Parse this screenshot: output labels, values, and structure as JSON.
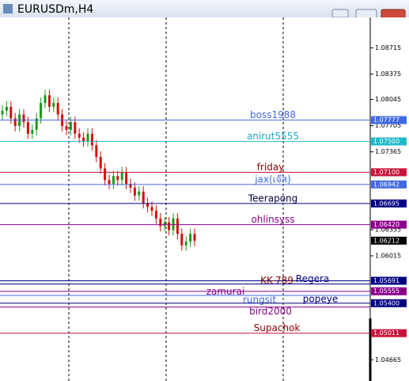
{
  "chart_data": {
    "type": "candlestick",
    "title": "EURUSDm,H4",
    "ylim": [
      1.0439,
      1.0911
    ],
    "yticks": [
      1.08715,
      1.08375,
      1.08045,
      1.07705,
      1.07365,
      1.06355,
      1.06015,
      1.04665
    ],
    "open": [
      1.0785,
      1.079,
      1.0795,
      1.078,
      1.077,
      1.0785,
      1.0775,
      1.076,
      1.0765,
      1.078,
      1.08,
      1.081,
      1.0795,
      1.08,
      1.0785,
      1.077,
      1.0765,
      1.0775,
      1.076,
      1.0755,
      1.075,
      1.076,
      1.0745,
      1.073,
      1.0715,
      1.07,
      1.0695,
      1.0705,
      1.07,
      1.071,
      1.0695,
      1.069,
      1.068,
      1.0685,
      1.067,
      1.0665,
      1.066,
      1.065,
      1.064,
      1.0645,
      1.0635,
      1.065,
      1.063,
      1.0615,
      1.062,
      1.063
    ],
    "high": [
      1.0797,
      1.0802,
      1.0802,
      1.0787,
      1.0792,
      1.0792,
      1.0782,
      1.0772,
      1.0787,
      1.0807,
      1.0817,
      1.0817,
      1.0807,
      1.0807,
      1.0792,
      1.0777,
      1.0782,
      1.0782,
      1.0767,
      1.0762,
      1.0767,
      1.0767,
      1.0752,
      1.0737,
      1.0722,
      1.0707,
      1.0712,
      1.0712,
      1.0717,
      1.0717,
      1.0702,
      1.0697,
      1.0692,
      1.0692,
      1.0677,
      1.0672,
      1.0667,
      1.0657,
      1.0652,
      1.0652,
      1.0657,
      1.0657,
      1.0637,
      1.0627,
      1.0637,
      1.0637
    ],
    "low": [
      1.0778,
      1.0783,
      1.0773,
      1.0763,
      1.0763,
      1.0768,
      1.0753,
      1.0753,
      1.0758,
      1.0773,
      1.0793,
      1.0788,
      1.0788,
      1.0778,
      1.0763,
      1.0758,
      1.0758,
      1.0753,
      1.0748,
      1.0743,
      1.0743,
      1.0738,
      1.0723,
      1.0708,
      1.0693,
      1.0688,
      1.0688,
      1.0693,
      1.0693,
      1.0688,
      1.0683,
      1.0673,
      1.0673,
      1.0663,
      1.0658,
      1.0653,
      1.0643,
      1.0633,
      1.0633,
      1.0628,
      1.0628,
      1.0623,
      1.0608,
      1.0608,
      1.0613,
      1.0614
    ],
    "close": [
      1.079,
      1.0795,
      1.078,
      1.077,
      1.0785,
      1.0775,
      1.076,
      1.0765,
      1.078,
      1.08,
      1.081,
      1.0795,
      1.08,
      1.0785,
      1.077,
      1.0765,
      1.0775,
      1.076,
      1.0755,
      1.075,
      1.076,
      1.0745,
      1.073,
      1.0715,
      1.07,
      1.0695,
      1.0705,
      1.07,
      1.071,
      1.0695,
      1.069,
      1.068,
      1.0685,
      1.067,
      1.0665,
      1.066,
      1.065,
      1.064,
      1.0645,
      1.0635,
      1.065,
      1.063,
      1.0615,
      1.062,
      1.063,
      1.0621
    ],
    "up_color": "#1a9a1a",
    "down_color": "#d01010",
    "current_price": 1.06212,
    "levels": [
      {
        "name": "boss1988",
        "value": 1.07777,
        "label": "1.07777",
        "color": "#4169e1",
        "text_color": "#4169e1"
      },
      {
        "name": "anirut5555",
        "value": 1.075,
        "label": "1.07500",
        "color": "#20b8c8",
        "text_color": "#20a8c8"
      },
      {
        "name": "friday",
        "value": 1.071,
        "label": "1.07100",
        "color": "#c8143c",
        "text_color": "#8b0000"
      },
      {
        "name": "jax(เจ๊ส)",
        "value": 1.06942,
        "label": "1.06942",
        "color": "#4169e1",
        "text_color": "#4169e1"
      },
      {
        "name": "Teerapong",
        "value": 1.06695,
        "label": "1.06695",
        "color": "#000080",
        "text_color": "#000040"
      },
      {
        "name": "ohlinsyss",
        "value": 1.0642,
        "label": "1.06420",
        "color": "#8b008b",
        "text_color": "#8b008b"
      },
      {
        "name": "KK-789",
        "value": 1.05691,
        "label": "1.05691",
        "color": "#000080",
        "text_color": "#800000"
      },
      {
        "name": "Regera",
        "value": 1.0565,
        "color": "#000080",
        "text_color": "#000080"
      },
      {
        "name": "zamurai",
        "value": 1.05555,
        "label": "1.05555",
        "color": "#8b008b",
        "text_color": "#8b008b"
      },
      {
        "name": "rungsit",
        "value": 1.055,
        "color": "#4169e1",
        "text_color": "#4169e1"
      },
      {
        "name": "popeye",
        "value": 1.054,
        "label": "1.05400",
        "color": "#000080",
        "text_color": "#000080"
      },
      {
        "name": "bird2000",
        "value": 1.0535,
        "color": "#8b008b",
        "text_color": "#8b008b"
      },
      {
        "name": "Supachok",
        "value": 1.05011,
        "label": "1.05011",
        "color": "#c8143c",
        "text_color": "#8b0000"
      }
    ]
  }
}
